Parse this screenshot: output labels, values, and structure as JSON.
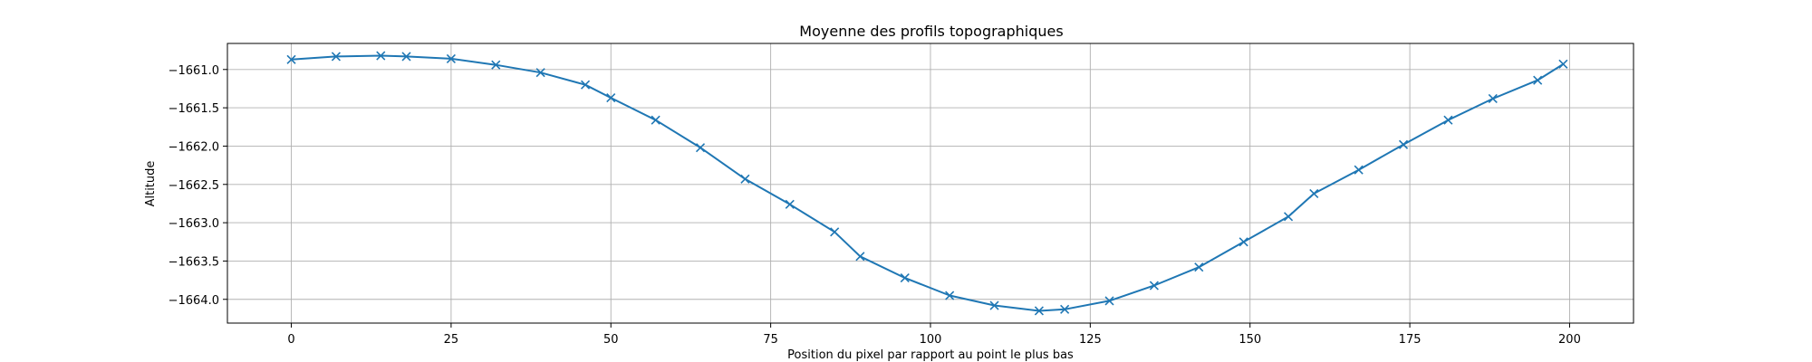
{
  "chart_data": {
    "type": "line",
    "title": "Moyenne des profils topographiques",
    "xlabel": "Position du pixel par rapport au point le plus bas",
    "ylabel": "Altitude",
    "xlim": [
      -10,
      210
    ],
    "ylim": [
      -1664.31,
      -1660.66
    ],
    "xticks": [
      0,
      25,
      50,
      75,
      100,
      125,
      150,
      175,
      200
    ],
    "yticks": [
      -1664.0,
      -1663.5,
      -1663.0,
      -1662.5,
      -1662.0,
      -1661.5,
      -1661.0
    ],
    "ytick_labels": [
      "−1664.0",
      "−1663.5",
      "−1663.0",
      "−1662.5",
      "−1662.0",
      "−1661.5",
      "−1661.0"
    ],
    "grid": true,
    "marker": "x",
    "color": "#1f77b4",
    "series": [
      {
        "x": [
          0,
          7,
          14,
          18,
          25,
          32,
          39,
          46,
          50,
          57,
          64,
          71,
          78,
          85,
          89,
          96,
          103,
          110,
          117,
          121,
          128,
          135,
          142,
          149,
          156,
          160,
          167,
          174,
          181,
          188,
          195,
          199
        ],
        "y": [
          -1660.87,
          -1660.83,
          -1660.82,
          -1660.83,
          -1660.86,
          -1660.94,
          -1661.04,
          -1661.2,
          -1661.37,
          -1661.66,
          -1662.02,
          -1662.43,
          -1662.76,
          -1663.12,
          -1663.44,
          -1663.72,
          -1663.95,
          -1664.08,
          -1664.15,
          -1664.13,
          -1664.02,
          -1663.82,
          -1663.58,
          -1663.25,
          -1662.92,
          -1662.62,
          -1662.31,
          -1661.98,
          -1661.66,
          -1661.38,
          -1661.14,
          -1660.93
        ]
      }
    ]
  }
}
